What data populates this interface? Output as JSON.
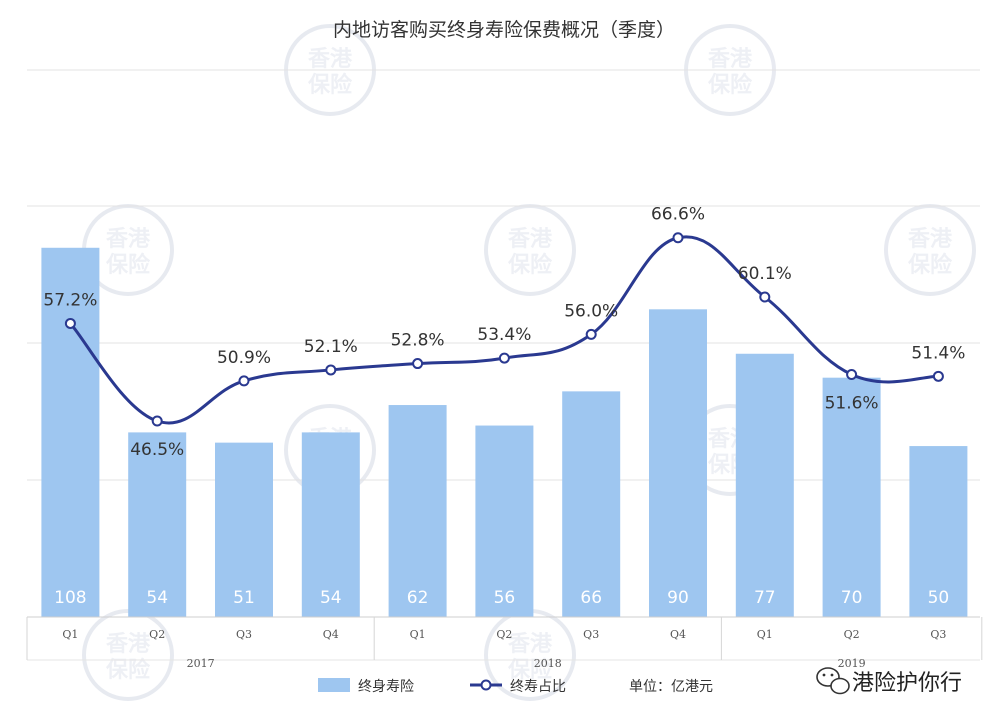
{
  "chart_data": {
    "type": "bar",
    "title": "内地访客购买终身寿险保费概况（季度）",
    "categories": [
      "Q1",
      "Q2",
      "Q3",
      "Q4",
      "Q1",
      "Q2",
      "Q3",
      "Q4",
      "Q1",
      "Q2",
      "Q3"
    ],
    "years": [
      {
        "label": "2017",
        "start": 0,
        "end": 3
      },
      {
        "label": "2018",
        "start": 4,
        "end": 7
      },
      {
        "label": "2019",
        "start": 8,
        "end": 10
      }
    ],
    "series": [
      {
        "name": "终身寿险",
        "type": "bar",
        "axis": "left",
        "color": "#9ec6f0",
        "values": [
          108,
          54,
          51,
          54,
          62,
          56,
          66,
          90,
          77,
          70,
          50
        ]
      },
      {
        "name": "终寿占比",
        "type": "line",
        "axis": "right",
        "color": "#2a3990",
        "values": [
          57.2,
          46.5,
          50.9,
          52.1,
          52.8,
          53.4,
          56.0,
          66.6,
          60.1,
          51.6,
          51.4
        ],
        "labels": [
          "57.2%",
          "46.5%",
          "50.9%",
          "52.1%",
          "52.8%",
          "53.4%",
          "56.0%",
          "66.6%",
          "60.1%",
          "51.6%",
          "51.4%"
        ]
      }
    ],
    "left_axis_range": [
      0,
      160
    ],
    "right_axis_range": [
      25,
      85
    ],
    "grid": true,
    "unit_note": "单位：亿港元",
    "legend_position": "bottom"
  },
  "branding": {
    "wechat_account": "港险护你行",
    "watermark_text": "香港保险"
  }
}
